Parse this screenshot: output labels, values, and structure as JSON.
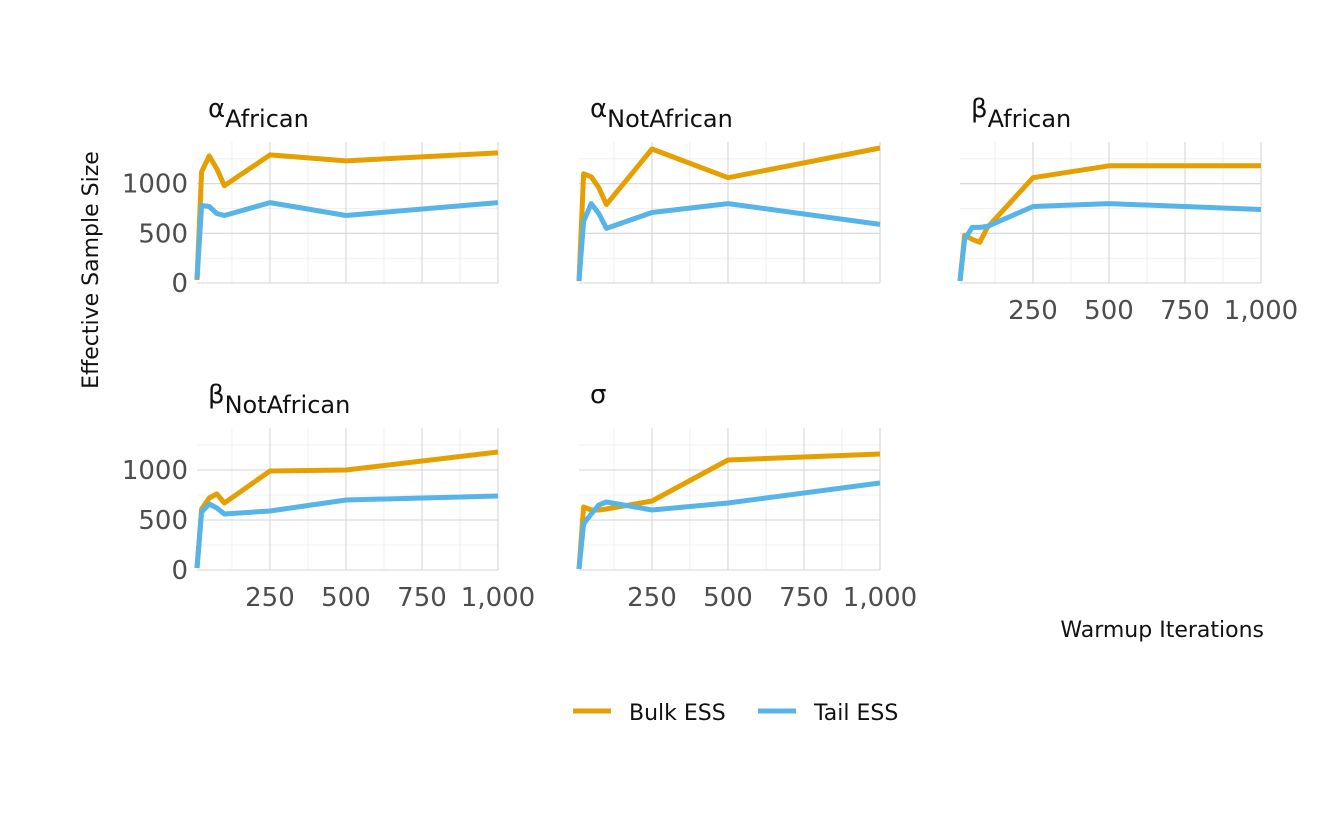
{
  "colors": {
    "bulk": "#E69F00",
    "tail": "#56B4E9"
  },
  "chart_data": {
    "type": "line",
    "xlabel": "Warmup Iterations",
    "ylabel": "Effective Sample Size",
    "x": [
      10,
      25,
      50,
      75,
      100,
      250,
      500,
      1000
    ],
    "x_ticks": [
      250,
      500,
      750,
      1000
    ],
    "x_tick_labels": [
      "250",
      "500",
      "750",
      "1,000"
    ],
    "y_ticks": [
      0,
      500,
      1000
    ],
    "y_tick_labels": [
      "0",
      "500",
      "1000"
    ],
    "xlim": [
      10,
      1000
    ],
    "ylim": [
      0,
      1420
    ],
    "legend": {
      "position": "bottom",
      "entries": [
        "Bulk ESS",
        "Tail ESS"
      ]
    },
    "facets": [
      {
        "symbol": "α",
        "subscript": "African",
        "show_y_ticks": true,
        "show_x_ticks": false,
        "series": [
          {
            "name": "Bulk ESS",
            "values": [
              30,
              1120,
              1280,
              1150,
              980,
              1290,
              1230,
              1310
            ]
          },
          {
            "name": "Tail ESS",
            "values": [
              40,
              780,
              770,
              700,
              680,
              810,
              680,
              810
            ]
          }
        ]
      },
      {
        "symbol": "α",
        "subscript": "NotAfrican",
        "show_y_ticks": false,
        "show_x_ticks": false,
        "series": [
          {
            "name": "Bulk ESS",
            "values": [
              20,
              1100,
              1070,
              960,
              790,
              1350,
              1060,
              1360
            ]
          },
          {
            "name": "Tail ESS",
            "values": [
              20,
              620,
              800,
              700,
              550,
              710,
              800,
              590
            ]
          }
        ]
      },
      {
        "symbol": "β",
        "subscript": "African",
        "show_y_ticks": false,
        "show_x_ticks": true,
        "series": [
          {
            "name": "Bulk ESS",
            "values": [
              20,
              480,
              440,
              410,
              560,
              1060,
              1180,
              1180
            ]
          },
          {
            "name": "Tail ESS",
            "values": [
              20,
              440,
              560,
              560,
              570,
              770,
              800,
              740
            ]
          }
        ]
      },
      {
        "symbol": "β",
        "subscript": "NotAfrican",
        "show_y_ticks": true,
        "show_x_ticks": true,
        "series": [
          {
            "name": "Bulk ESS",
            "values": [
              20,
              610,
              720,
              760,
              670,
              990,
              1000,
              1180
            ]
          },
          {
            "name": "Tail ESS",
            "values": [
              20,
              580,
              660,
              620,
              560,
              590,
              700,
              740
            ]
          }
        ]
      },
      {
        "symbol": "σ",
        "subscript": "",
        "show_y_ticks": false,
        "show_x_ticks": true,
        "series": [
          {
            "name": "Bulk ESS",
            "values": [
              10,
              630,
              600,
              600,
              610,
              690,
              1100,
              1160
            ]
          },
          {
            "name": "Tail ESS",
            "values": [
              10,
              460,
              560,
              650,
              680,
              600,
              670,
              870
            ]
          }
        ]
      }
    ]
  }
}
